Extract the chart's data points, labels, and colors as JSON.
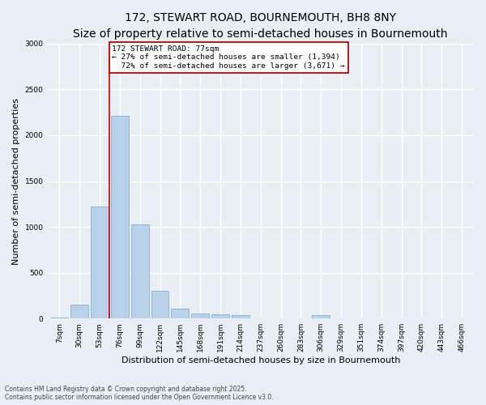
{
  "title": "172, STEWART ROAD, BOURNEMOUTH, BH8 8NY",
  "subtitle": "Size of property relative to semi-detached houses in Bournemouth",
  "xlabel": "Distribution of semi-detached houses by size in Bournemouth",
  "ylabel": "Number of semi-detached properties",
  "categories": [
    "7sqm",
    "30sqm",
    "53sqm",
    "76sqm",
    "99sqm",
    "122sqm",
    "145sqm",
    "168sqm",
    "191sqm",
    "214sqm",
    "237sqm",
    "260sqm",
    "283sqm",
    "306sqm",
    "329sqm",
    "351sqm",
    "374sqm",
    "397sqm",
    "420sqm",
    "443sqm",
    "466sqm"
  ],
  "values": [
    10,
    150,
    1220,
    2210,
    1030,
    300,
    110,
    55,
    50,
    35,
    0,
    0,
    0,
    35,
    0,
    0,
    0,
    0,
    0,
    0,
    0
  ],
  "bar_color": "#b8d0e8",
  "bar_edgecolor": "#7aaac8",
  "vline_index": 3,
  "vline_color": "#cc0000",
  "annotation_box_edgecolor": "#cc0000",
  "property_label": "172 STEWART ROAD: 77sqm",
  "smaller_pct": "27%",
  "smaller_count": "1,394",
  "larger_pct": "72%",
  "larger_count": "3,671",
  "ylim": [
    0,
    3000
  ],
  "yticks": [
    0,
    500,
    1000,
    1500,
    2000,
    2500,
    3000
  ],
  "background_color": "#e8eef4",
  "grid_color": "#ffffff",
  "title_fontsize": 10,
  "subtitle_fontsize": 8.5,
  "axis_label_fontsize": 8,
  "tick_fontsize": 6.5,
  "annot_fontsize": 6.8,
  "footnote_line1": "Contains HM Land Registry data © Crown copyright and database right 2025.",
  "footnote_line2": "Contains public sector information licensed under the Open Government Licence v3.0."
}
